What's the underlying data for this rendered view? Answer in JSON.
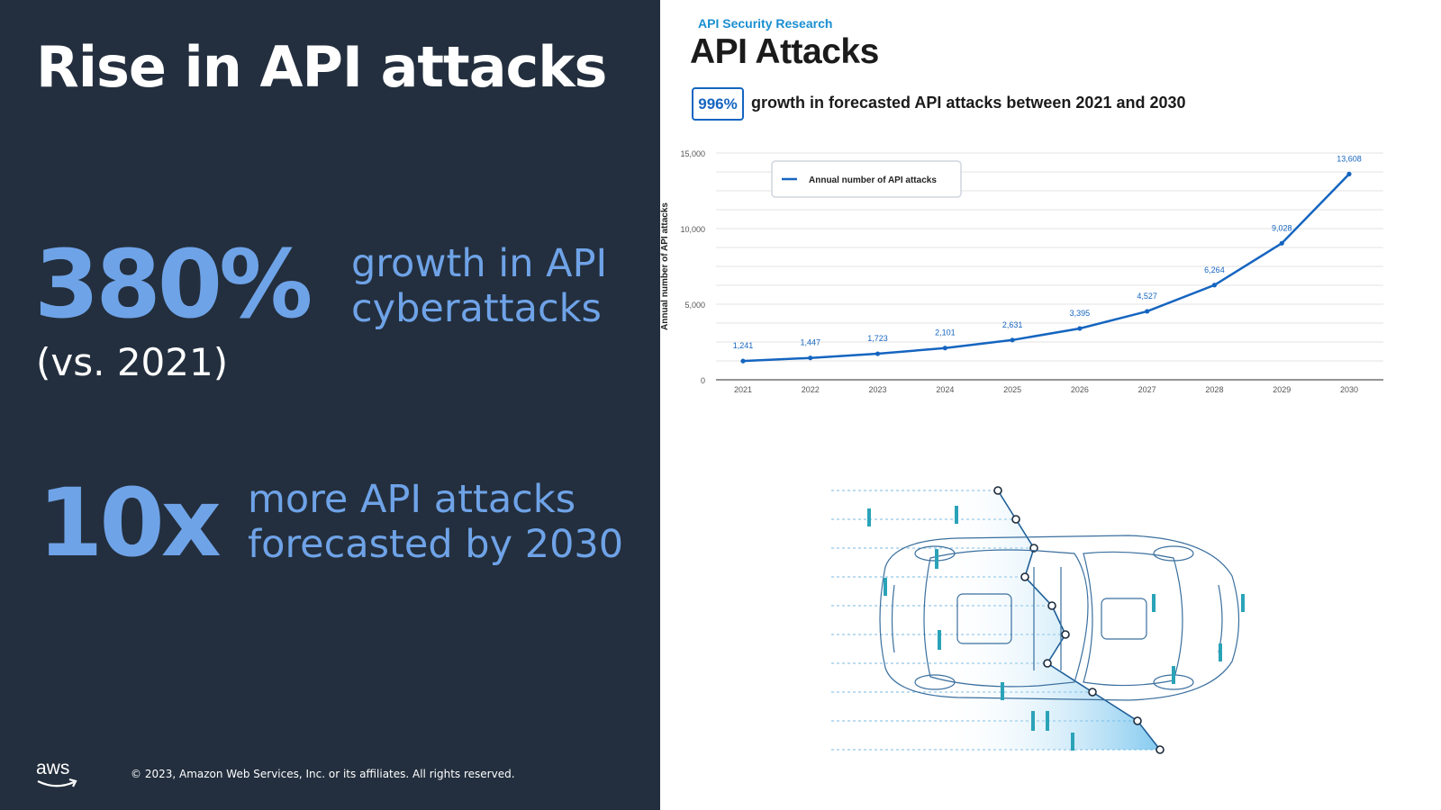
{
  "slide": {
    "title": "Rise in API attacks",
    "stat1": {
      "value": "380%",
      "line1": "growth in API",
      "line2": "cyberattacks",
      "note": "(vs. 2021)"
    },
    "stat2": {
      "value": "10x",
      "line1": "more API attacks",
      "line2": "forecasted by 2030"
    },
    "footer": {
      "logo": "aws",
      "copyright": "© 2023, Amazon Web Services, Inc. or its affiliates. All rights reserved."
    }
  },
  "figure": {
    "source": "API Security Research",
    "heading": "API Attacks",
    "growth_badge": "996%",
    "growth_text": "growth in forecasted API attacks between 2021 and 2030"
  },
  "chart_data": {
    "type": "line",
    "title": "",
    "xlabel": "",
    "ylabel": "Annual number of API attacks",
    "categories": [
      "2021",
      "2022",
      "2023",
      "2024",
      "2025",
      "2026",
      "2027",
      "2028",
      "2029",
      "2030"
    ],
    "series": [
      {
        "name": "Annual number of API attacks",
        "values": [
          1241,
          1447,
          1723,
          2101,
          2631,
          3395,
          4527,
          6264,
          9028,
          13608
        ],
        "color": "#1565c0"
      }
    ],
    "data_labels": [
      "1,241",
      "1,447",
      "1,723",
      "2,101",
      "2,631",
      "3,395",
      "4,527",
      "6,264",
      "9,028",
      "13,608"
    ],
    "yticks": [
      0,
      5000,
      10000,
      15000
    ],
    "ytick_labels": [
      "0",
      "5,000",
      "10,000",
      "15,000"
    ],
    "ylim": [
      0,
      15000
    ],
    "grid": true,
    "legend": "top-left"
  },
  "colors": {
    "background_left": "#232f3e",
    "accent": "#6fa3e8",
    "line": "#1565c0"
  }
}
